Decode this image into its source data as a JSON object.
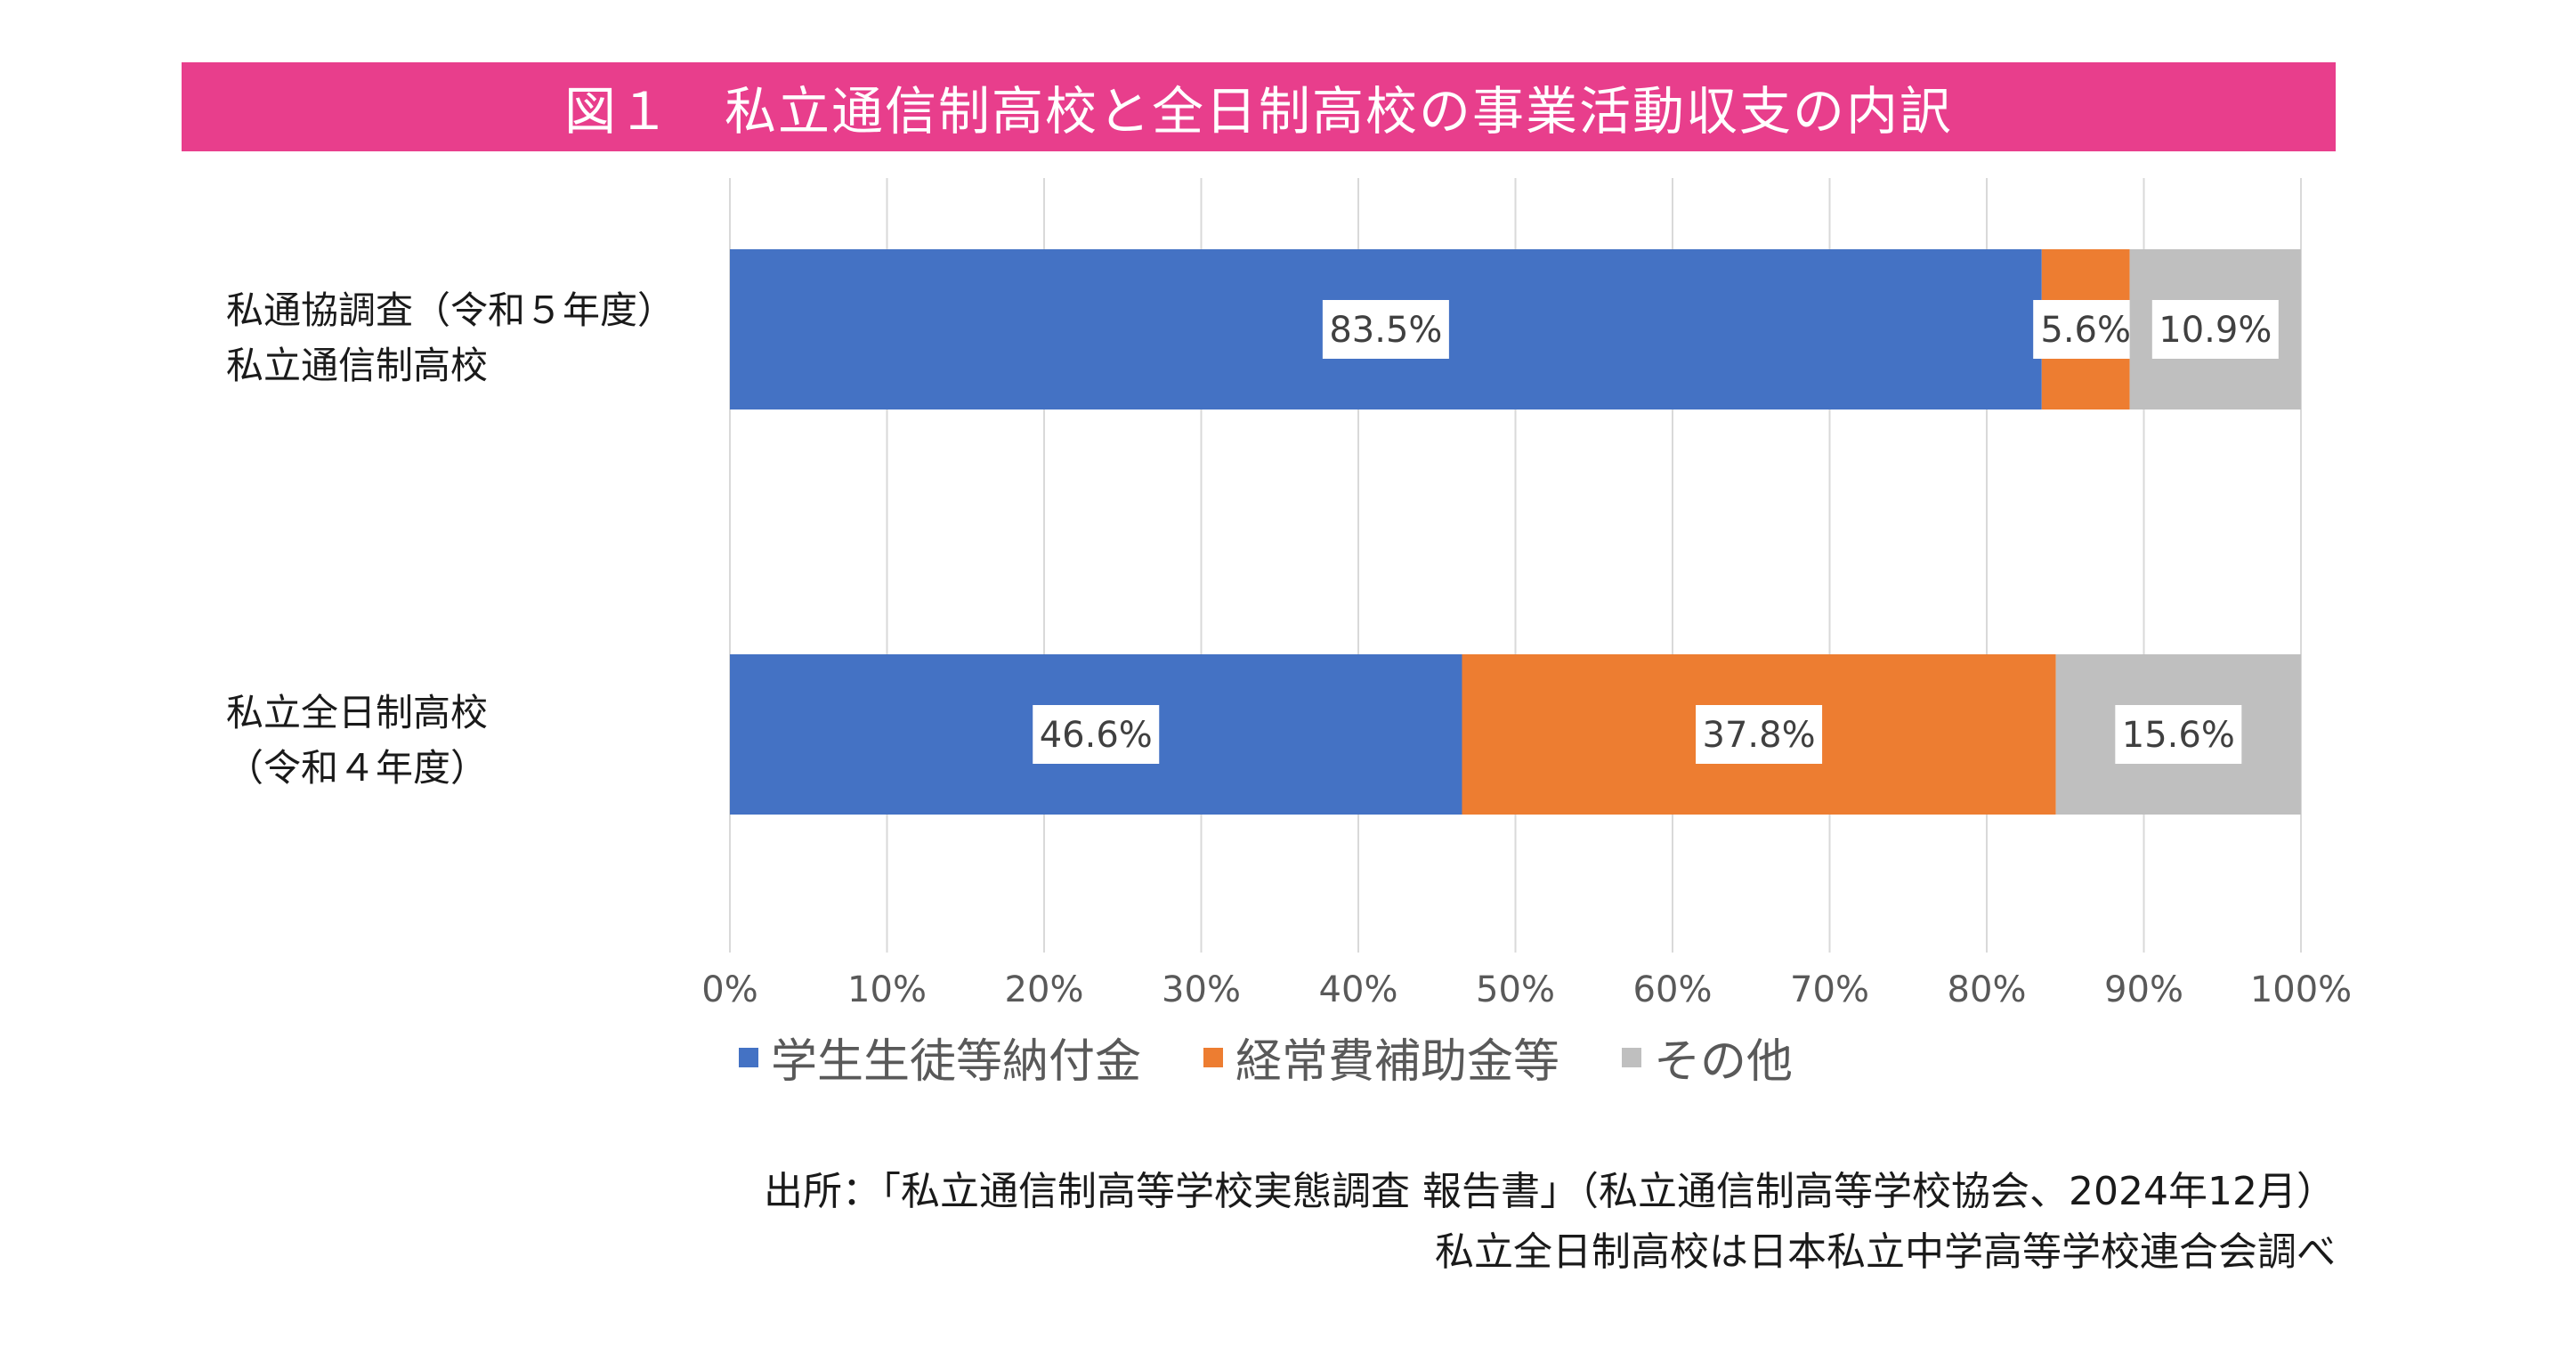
{
  "title": "図１　私立通信制高校と全日制高校の事業活動収支の内訳",
  "colors": {
    "title_bg": "#e83e8c",
    "series_1": "#4472c4",
    "series_2": "#ed7d31",
    "series_3": "#bfbfbf"
  },
  "chart_data": {
    "type": "bar",
    "orientation": "horizontal",
    "stacked": "percent",
    "categories": [
      [
        "私通協調査（令和５年度）",
        "私立通信制高校"
      ],
      [
        "私立全日制高校",
        "（令和４年度）"
      ]
    ],
    "series": [
      {
        "name": "学生生徒等納付金",
        "values": [
          83.5,
          46.6
        ],
        "labels": [
          "83.5%",
          "46.6%"
        ]
      },
      {
        "name": "経常費補助金等",
        "values": [
          5.6,
          37.8
        ],
        "labels": [
          "5.6%",
          "37.8%"
        ]
      },
      {
        "name": "その他",
        "values": [
          10.9,
          15.6
        ],
        "labels": [
          "10.9%",
          "15.6%"
        ]
      }
    ],
    "x_ticks": [
      "0%",
      "10%",
      "20%",
      "30%",
      "40%",
      "50%",
      "60%",
      "70%",
      "80%",
      "90%",
      "100%"
    ],
    "xlim": [
      0,
      100
    ],
    "grid": true,
    "legend_position": "bottom"
  },
  "source": {
    "line1": "出所：「私立通信制高等学校実態調査 報告書」（私立通信制高等学校協会、2024年12月）",
    "line2": "私立全日制高校は日本私立中学高等学校連合会調べ"
  }
}
